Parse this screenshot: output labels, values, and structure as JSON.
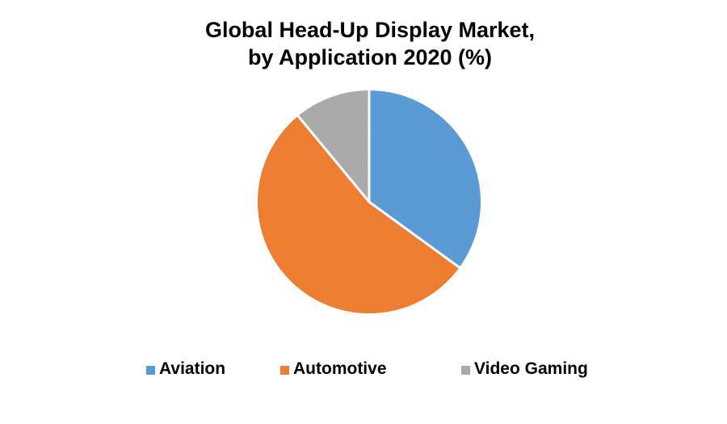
{
  "title": {
    "line1": "Global Head-Up Display Market,",
    "line2": "by Application 2020 (%)"
  },
  "chart_data": {
    "type": "pie",
    "title": "Global Head-Up Display Market, by Application 2020 (%)",
    "start_angle_deg": 0,
    "direction": "clockwise",
    "legend_position": "bottom",
    "background_color": "#ffffff",
    "separator_color": "#ffffff",
    "slices": [
      {
        "label": "Aviation",
        "value": 35,
        "color": "#5b9bd5",
        "fill_style": "solid"
      },
      {
        "label": "Automotive",
        "value": 54,
        "color": "#ed7d31",
        "fill_style": "solid"
      },
      {
        "label": "Video Gaming",
        "value": 11,
        "color": "#a5a5a5",
        "fill_style": "dotted-pattern",
        "pattern_colors": [
          "#9c9c9c",
          "#b7b7b7"
        ]
      }
    ]
  }
}
